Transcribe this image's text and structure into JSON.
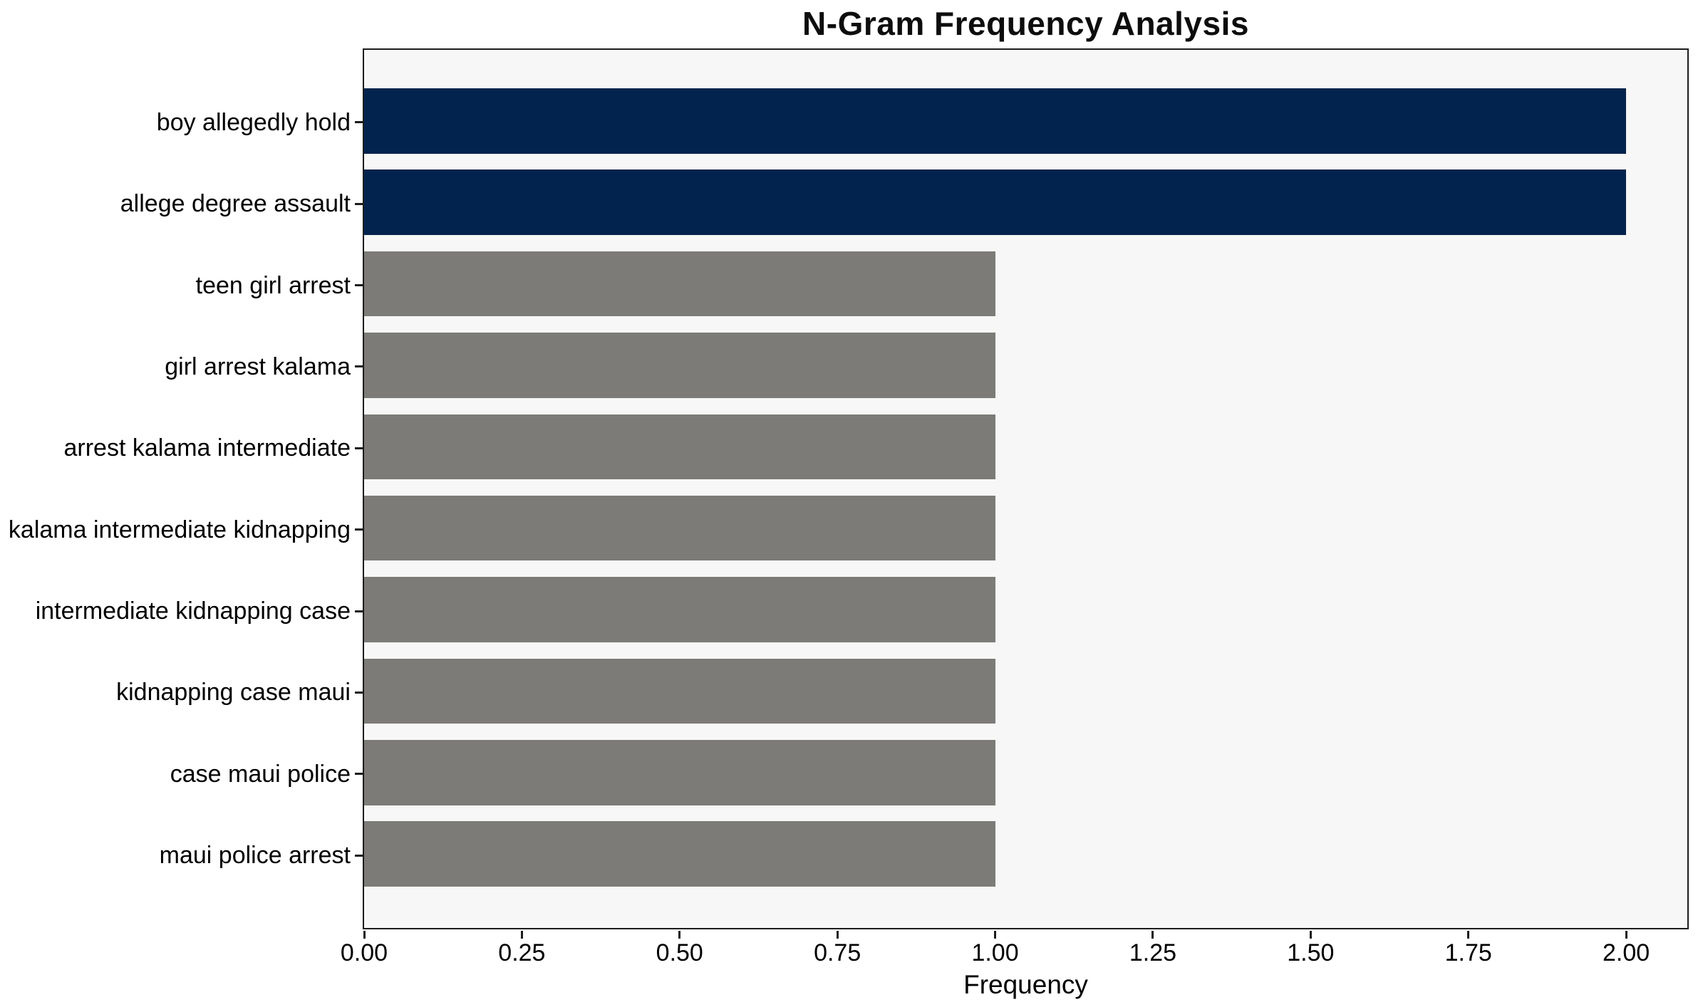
{
  "chart_data": {
    "type": "bar",
    "orientation": "horizontal",
    "title": "N-Gram Frequency Analysis",
    "xlabel": "Frequency",
    "ylabel": "",
    "categories": [
      "boy allegedly hold",
      "allege degree assault",
      "teen girl arrest",
      "girl arrest kalama",
      "arrest kalama intermediate",
      "kalama intermediate kidnapping",
      "intermediate kidnapping case",
      "kidnapping case maui",
      "case maui police",
      "maui police arrest"
    ],
    "values": [
      2,
      2,
      1,
      1,
      1,
      1,
      1,
      1,
      1,
      1
    ],
    "bar_colors": [
      "#02234d",
      "#02234d",
      "#7c7b77",
      "#7c7b77",
      "#7c7b77",
      "#7c7b77",
      "#7c7b77",
      "#7c7b77",
      "#7c7b77",
      "#7c7b77"
    ],
    "xlim": [
      0,
      2.097
    ],
    "xticks": [
      0,
      0.25,
      0.5,
      0.75,
      1.0,
      1.25,
      1.5,
      1.75,
      2.0
    ],
    "xtick_labels": [
      "0.00",
      "0.25",
      "0.50",
      "0.75",
      "1.00",
      "1.25",
      "1.50",
      "1.75",
      "2.00"
    ],
    "grid": false,
    "legend": false,
    "colors": {
      "highlight_bar": "#02234d",
      "default_bar": "#7c7b77",
      "plot_background": "#f7f7f7",
      "figure_background": "#ffffff",
      "spine": "#1c1c1c",
      "text": "#000000"
    }
  }
}
